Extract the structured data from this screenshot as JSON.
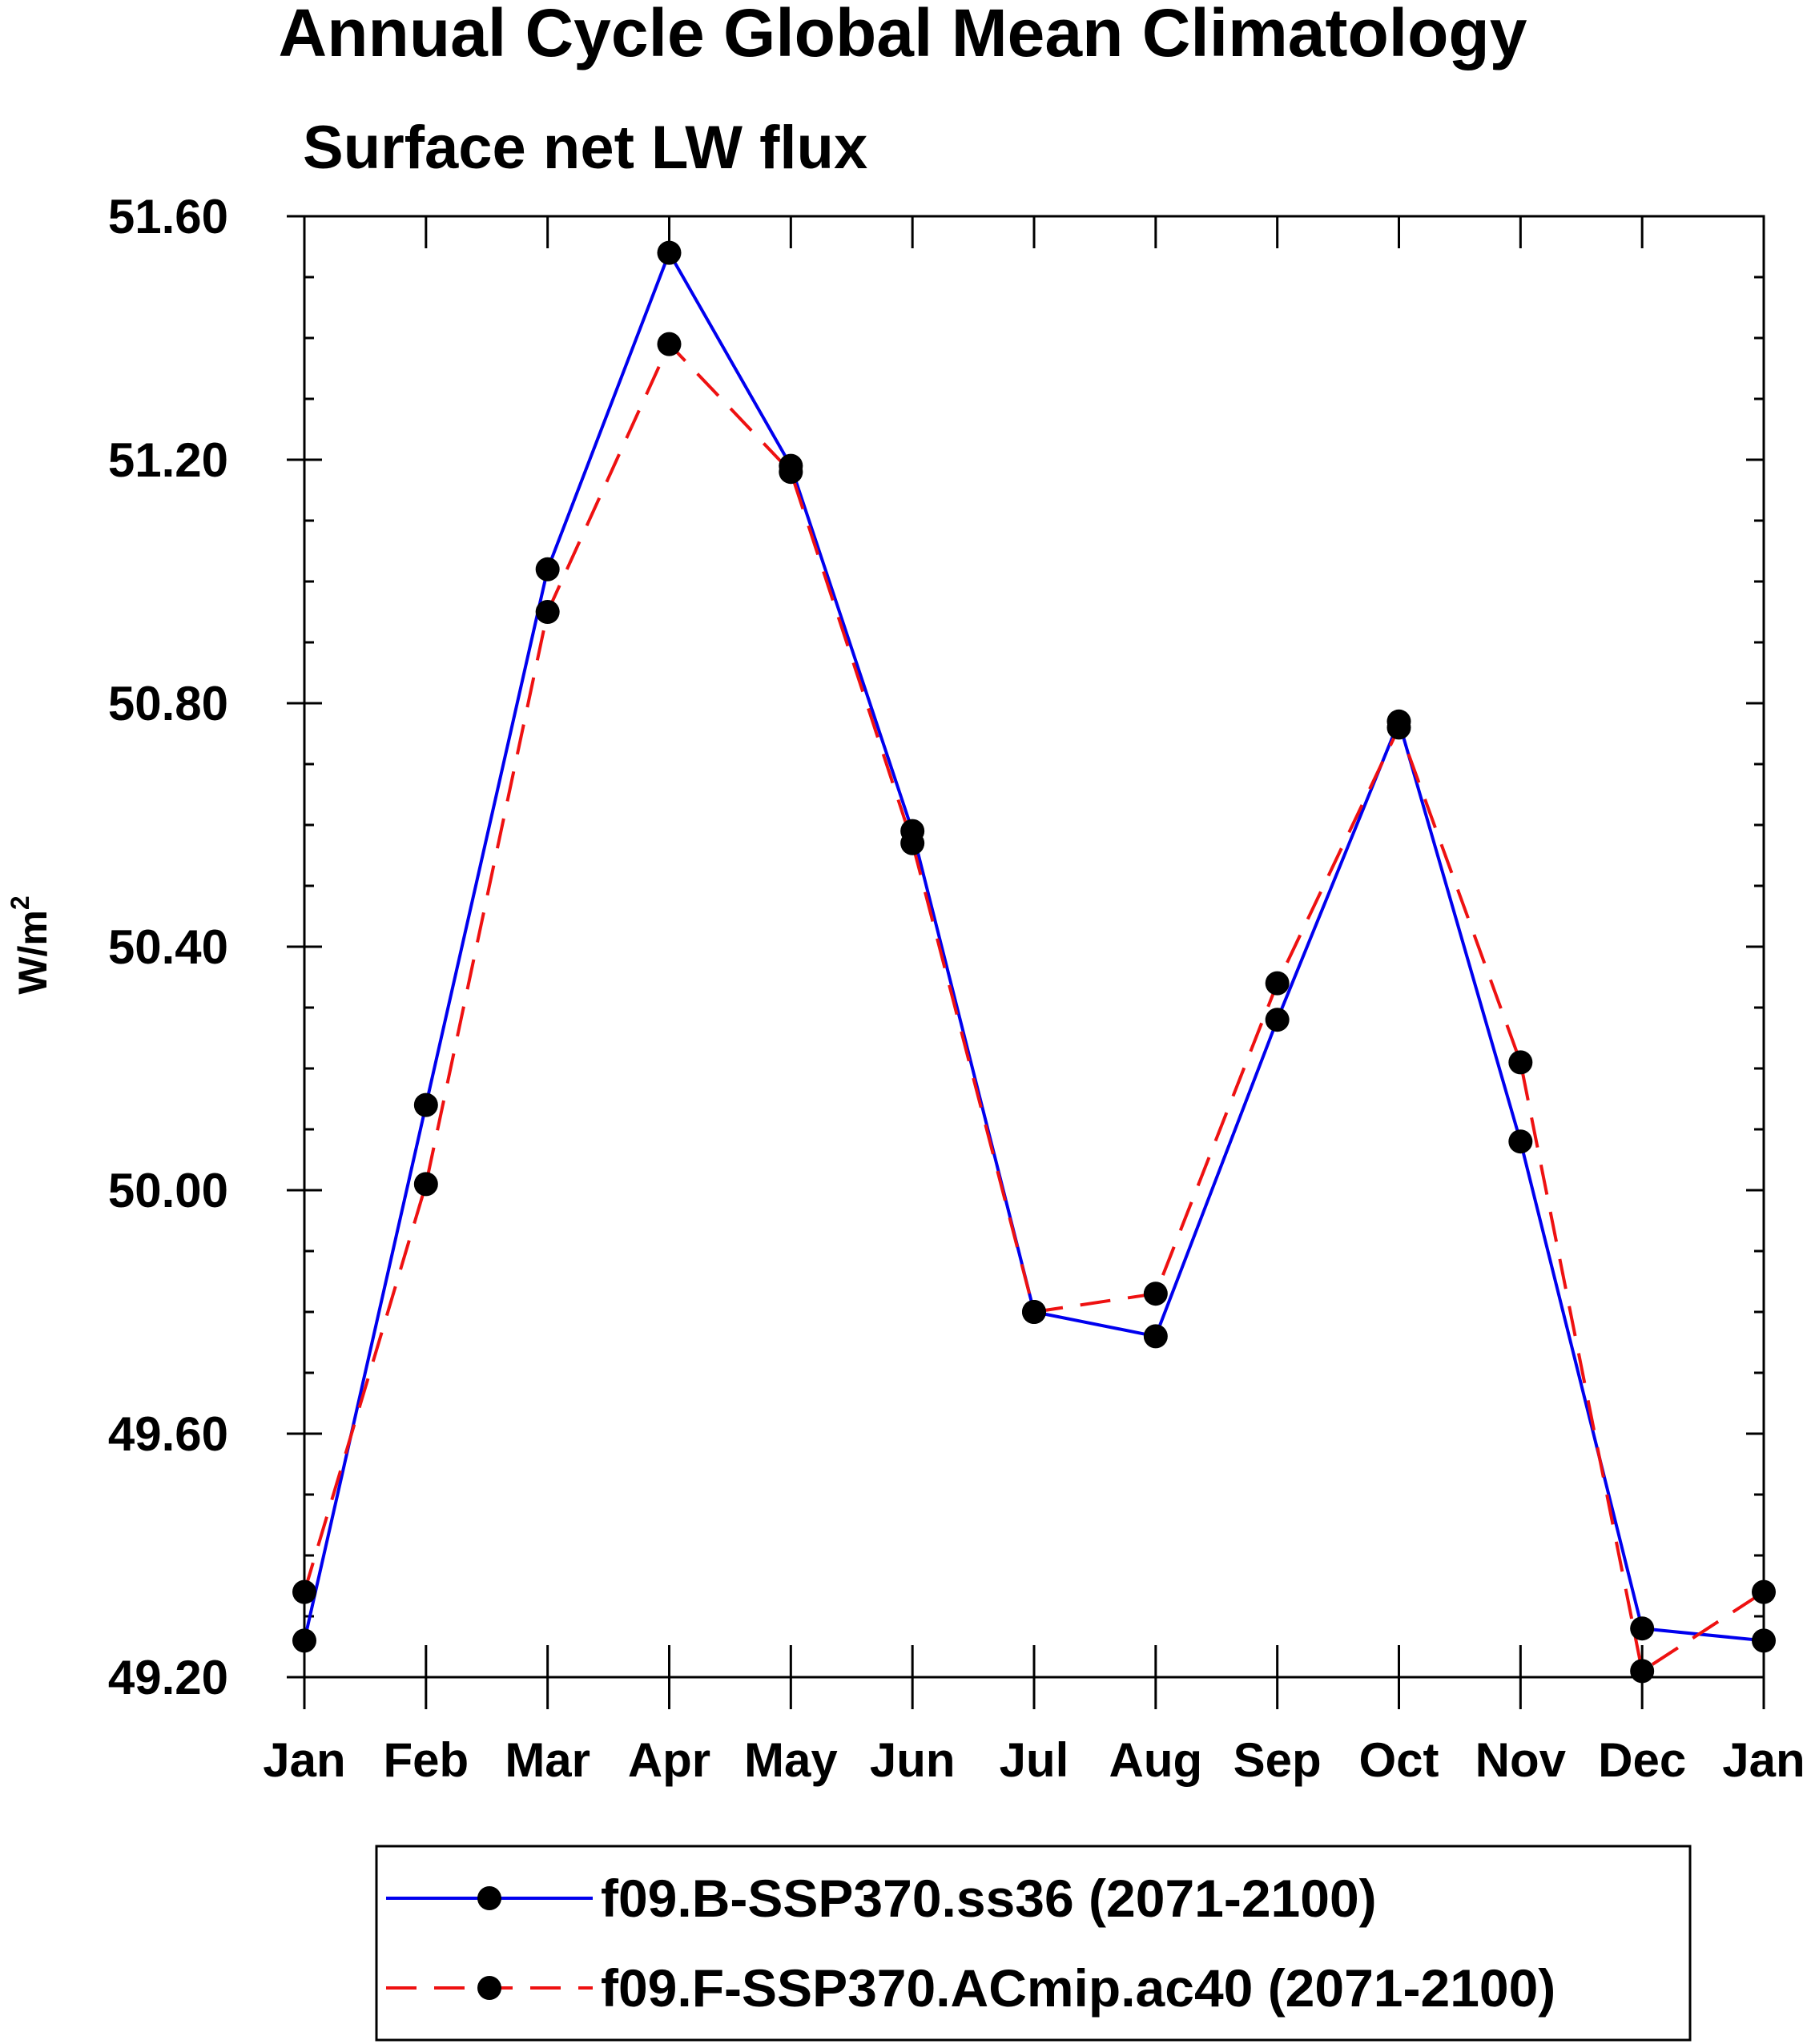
{
  "chart_data": {
    "type": "line",
    "title": "Annual Cycle Global Mean Climatology",
    "subtitle": "Surface net LW flux",
    "xlabel": "",
    "ylabel": "W/m",
    "ylabel_sup": "2",
    "categories": [
      "Jan",
      "Feb",
      "Mar",
      "Apr",
      "May",
      "Jun",
      "Jul",
      "Aug",
      "Sep",
      "Oct",
      "Nov",
      "Dec",
      "Jan"
    ],
    "ylim": [
      49.2,
      51.6
    ],
    "yticks": [
      "51.60",
      "51.20",
      "50.80",
      "50.40",
      "50.00",
      "49.60",
      "49.20"
    ],
    "grid": false,
    "legend_position": "bottom",
    "series": [
      {
        "name": "f09.B-SSP370.ss36 (2071-2100)",
        "color": "#0000ee",
        "dash": "solid",
        "values": [
          49.26,
          50.14,
          51.02,
          51.54,
          51.19,
          50.59,
          49.8,
          49.76,
          50.28,
          50.77,
          50.08,
          49.28,
          49.26
        ]
      },
      {
        "name": "f09.F-SSP370.ACmip.ac40 (2071-2100)",
        "color": "#ee1111",
        "dash": "dashed",
        "values": [
          49.34,
          50.01,
          50.95,
          51.39,
          51.18,
          50.57,
          49.8,
          49.83,
          50.34,
          50.76,
          50.21,
          49.21,
          49.34
        ]
      }
    ]
  }
}
